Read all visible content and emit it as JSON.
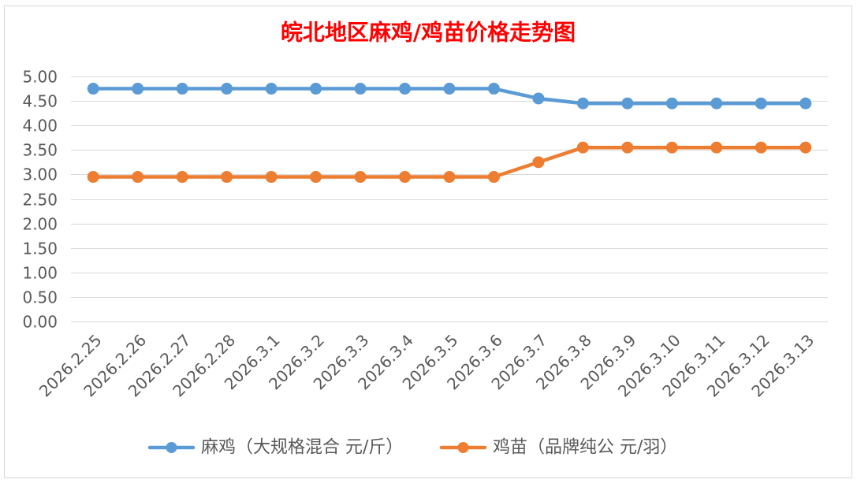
{
  "chart_data": {
    "type": "line",
    "title": "皖北地区麻鸡/鸡苗价格走势图",
    "categories": [
      "2026.2.25",
      "2026.2.26",
      "2026.2.27",
      "2026.2.28",
      "2026.3.1",
      "2026.3.2",
      "2026.3.3",
      "2026.3.4",
      "2026.3.5",
      "2026.3.6",
      "2026.3.7",
      "2026.3.8",
      "2026.3.9",
      "2026.3.10",
      "2026.3.11",
      "2026.3.12",
      "2026.3.13"
    ],
    "series": [
      {
        "name": "麻鸡（大规格混合 元/斤）",
        "color": "#5B9BD5",
        "marker": "circle",
        "values": [
          4.75,
          4.75,
          4.75,
          4.75,
          4.75,
          4.75,
          4.75,
          4.75,
          4.75,
          4.75,
          4.55,
          4.45,
          4.45,
          4.45,
          4.45,
          4.45,
          4.45
        ]
      },
      {
        "name": "鸡苗（品牌纯公 元/羽）",
        "color": "#ED7D31",
        "marker": "circle",
        "values": [
          2.95,
          2.95,
          2.95,
          2.95,
          2.95,
          2.95,
          2.95,
          2.95,
          2.95,
          2.95,
          3.25,
          3.55,
          3.55,
          3.55,
          3.55,
          3.55,
          3.55
        ]
      }
    ],
    "ylim": [
      0,
      5
    ],
    "yticks": [
      "5.00",
      "4.50",
      "4.00",
      "3.50",
      "3.00",
      "2.50",
      "2.00",
      "1.50",
      "1.00",
      "0.50",
      "0.00"
    ],
    "grid": true,
    "legend": "bottom"
  },
  "colors": {
    "title": "#FF0000",
    "axis_text": "#595959",
    "gridline": "#D9D9D9",
    "chart_border": "#D9D9D9"
  }
}
